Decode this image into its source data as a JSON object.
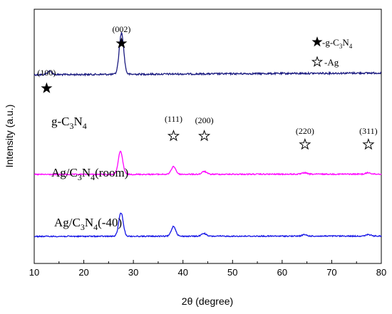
{
  "chart_data": {
    "type": "line",
    "xlabel": "2θ (degree)",
    "ylabel": "Intensity (a.u.)",
    "xlim": [
      10,
      80
    ],
    "xticks": [
      10,
      20,
      30,
      40,
      50,
      60,
      70,
      80
    ],
    "yticks": "none",
    "grid": false,
    "legend": {
      "placement": "top-right",
      "entries": [
        {
          "symbol": "filled-star",
          "label_prefix": "-g-C",
          "sub1": "3",
          "mid": "N",
          "sub2": "4"
        },
        {
          "symbol": "open-star",
          "label_prefix": "-Ag"
        }
      ]
    },
    "series": [
      {
        "color": "#1b1b80",
        "label": {
          "p1": "g-C",
          "s1": "3",
          "p2": "N",
          "s2": "4",
          "tail": ""
        },
        "offset": 265,
        "amp_scale": 1.0,
        "noise_amp": 1.2,
        "baseline_slope": 2.5,
        "peaks": [
          {
            "x": 13.1,
            "h": 5
          },
          {
            "x": 27.6,
            "h": 58
          }
        ]
      },
      {
        "color": "#ff00ff",
        "label": {
          "p1": "Ag/C",
          "s1": "3",
          "p2": "N",
          "s2": "4",
          "tail": "(room)"
        },
        "offset": 125,
        "amp_scale": 1.0,
        "noise_amp": 0.8,
        "baseline_slope": 0.5,
        "peaks": [
          {
            "x": 27.4,
            "h": 32
          },
          {
            "x": 38.1,
            "h": 11
          },
          {
            "x": 44.3,
            "h": 4
          },
          {
            "x": 64.5,
            "h": 2
          },
          {
            "x": 77.4,
            "h": 2
          }
        ]
      },
      {
        "color": "#1414e6",
        "label": {
          "p1": "Ag/C",
          "s1": "3",
          "p2": "N",
          "s2": "4",
          "tail": "(-40)"
        },
        "offset": 38,
        "amp_scale": 1.0,
        "noise_amp": 0.8,
        "baseline_slope": 0.5,
        "peaks": [
          {
            "x": 27.5,
            "h": 33
          },
          {
            "x": 38.1,
            "h": 14
          },
          {
            "x": 44.2,
            "h": 4
          },
          {
            "x": 64.5,
            "h": 2
          },
          {
            "x": 77.4,
            "h": 2
          }
        ]
      }
    ],
    "annotations": [
      {
        "text": "(100)",
        "x": 13.1,
        "symbol": "filled-star"
      },
      {
        "text": "(002)",
        "x": 27.6,
        "symbol": "filled-star"
      },
      {
        "text": "(111)",
        "x": 38.1,
        "symbol": "open-star"
      },
      {
        "text": "(200)",
        "x": 44.3,
        "symbol": "open-star"
      },
      {
        "text": "(220)",
        "x": 64.5,
        "symbol": "open-star"
      },
      {
        "text": "(311)",
        "x": 77.4,
        "symbol": "open-star"
      }
    ]
  }
}
